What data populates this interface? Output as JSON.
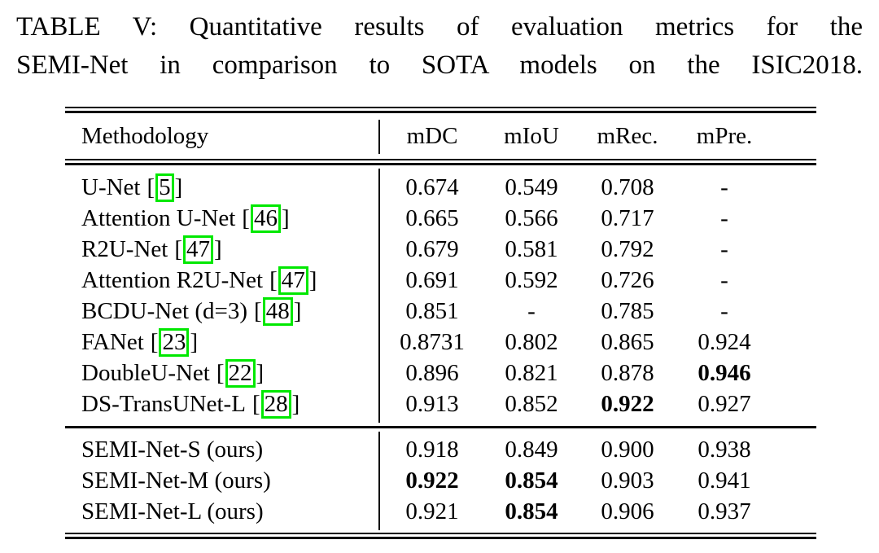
{
  "caption": {
    "line1": "TABLE V: Quantitative results of evaluation metrics for the",
    "line2": "SEMI-Net in comparison to SOTA models on the ISIC2018."
  },
  "table": {
    "headers": [
      "Methodology",
      "mDC",
      "mIoU",
      "mRec.",
      "mPre."
    ],
    "citation_brackets": [
      "[",
      "]"
    ],
    "sections": [
      {
        "rows": [
          {
            "name": "U-Net",
            "cite": "5",
            "values": [
              "0.674",
              "0.549",
              "0.708",
              "-"
            ],
            "bold": [
              false,
              false,
              false,
              false
            ]
          },
          {
            "name": "Attention U-Net",
            "cite": "46",
            "values": [
              "0.665",
              "0.566",
              "0.717",
              "-"
            ],
            "bold": [
              false,
              false,
              false,
              false
            ]
          },
          {
            "name": "R2U-Net",
            "cite": "47",
            "values": [
              "0.679",
              "0.581",
              "0.792",
              "-"
            ],
            "bold": [
              false,
              false,
              false,
              false
            ]
          },
          {
            "name": "Attention R2U-Net",
            "cite": "47",
            "values": [
              "0.691",
              "0.592",
              "0.726",
              "-"
            ],
            "bold": [
              false,
              false,
              false,
              false
            ]
          },
          {
            "name": "BCDU-Net (d=3)",
            "cite": "48",
            "values": [
              "0.851",
              "-",
              "0.785",
              "-"
            ],
            "bold": [
              false,
              false,
              false,
              false
            ]
          },
          {
            "name": "FANet",
            "cite": "23",
            "values": [
              "0.8731",
              "0.802",
              "0.865",
              "0.924"
            ],
            "bold": [
              false,
              false,
              false,
              false
            ]
          },
          {
            "name": "DoubleU-Net",
            "cite": "22",
            "values": [
              "0.896",
              "0.821",
              "0.878",
              "0.946"
            ],
            "bold": [
              false,
              false,
              false,
              true
            ]
          },
          {
            "name": "DS-TransUNet-L",
            "cite": "28",
            "values": [
              "0.913",
              "0.852",
              "0.922",
              "0.927"
            ],
            "bold": [
              false,
              false,
              true,
              false
            ]
          }
        ]
      },
      {
        "rows": [
          {
            "name": "SEMI-Net-S (ours)",
            "cite": null,
            "values": [
              "0.918",
              "0.849",
              "0.900",
              "0.938"
            ],
            "bold": [
              false,
              false,
              false,
              false
            ]
          },
          {
            "name": "SEMI-Net-M (ours)",
            "cite": null,
            "values": [
              "0.922",
              "0.854",
              "0.903",
              "0.941"
            ],
            "bold": [
              true,
              true,
              false,
              false
            ]
          },
          {
            "name": "SEMI-Net-L (ours)",
            "cite": null,
            "values": [
              "0.921",
              "0.854",
              "0.906",
              "0.937"
            ],
            "bold": [
              false,
              true,
              false,
              false
            ]
          }
        ]
      }
    ]
  },
  "colors": {
    "citation_box_border": "#00e800",
    "text": "#000000",
    "background": "#ffffff"
  }
}
